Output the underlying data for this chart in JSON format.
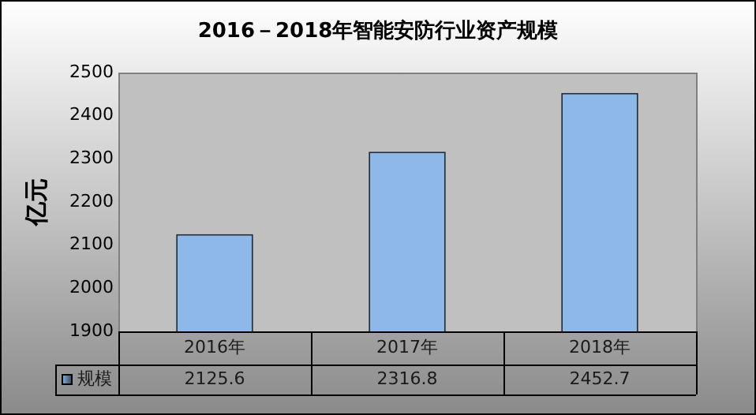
{
  "chart_data": {
    "type": "bar",
    "title": "2016－2018年智能安防行业资产规模",
    "ylabel": "亿元",
    "categories": [
      "2016年",
      "2017年",
      "2018年"
    ],
    "series": [
      {
        "name": "规模",
        "color": "#8db8e8",
        "values": [
          2125.6,
          2316.8,
          2452.7
        ]
      }
    ],
    "ylim": [
      1900,
      2500
    ],
    "yticks": [
      1900,
      2000,
      2100,
      2200,
      2300,
      2400,
      2500
    ],
    "grid": false,
    "legend": "bottom left",
    "data_labels": true
  }
}
